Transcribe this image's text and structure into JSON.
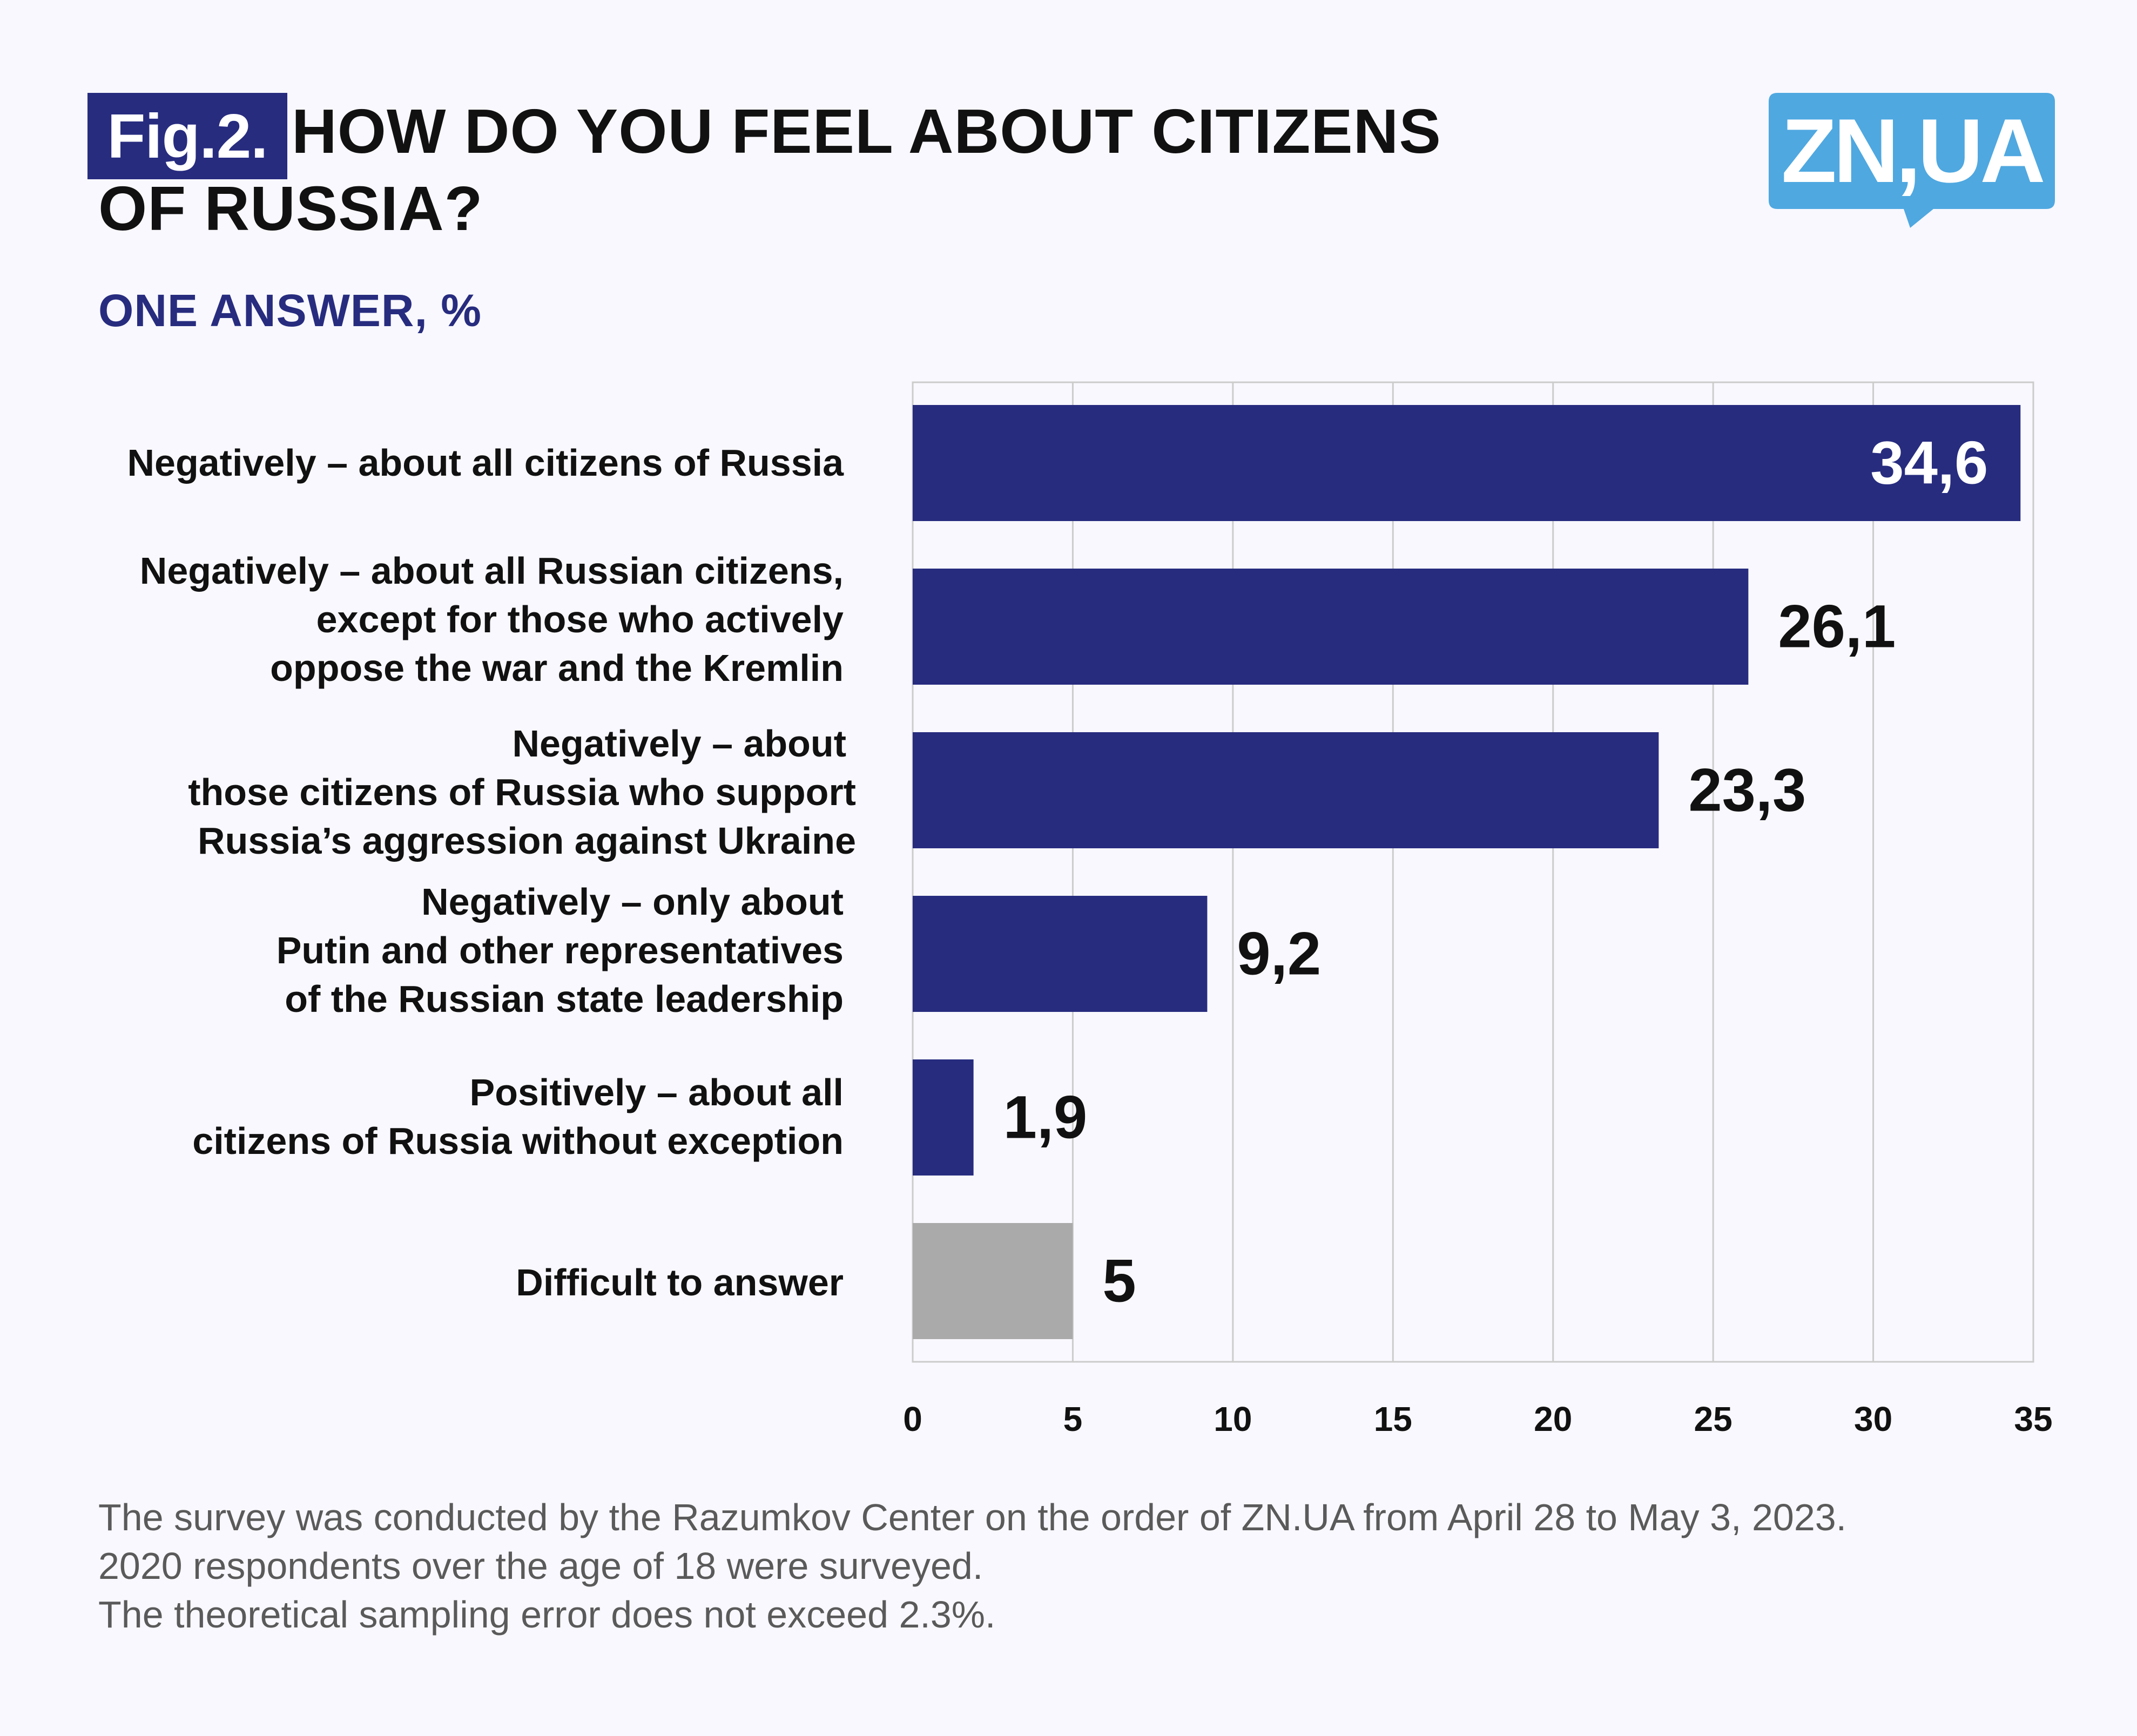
{
  "header": {
    "fig_label": "Fig.2.",
    "title": "HOW DO YOU FEEL ABOUT CITIZENS OF RUSSIA?",
    "subtitle": "ONE ANSWER, %"
  },
  "logo": {
    "text": "ZN,UA",
    "color": "#4fa8e0"
  },
  "colors": {
    "bar": "#272c7f",
    "bar_other": "#aaaaaa",
    "grid": "#cccccc",
    "accent": "#272c7f"
  },
  "chart_data": {
    "type": "bar",
    "orientation": "horizontal",
    "title": "HOW DO YOU FEEL ABOUT CITIZENS OF RUSSIA?",
    "xlabel": "",
    "ylabel": "",
    "xlim": [
      0,
      35
    ],
    "ticks": [
      0,
      5,
      10,
      15,
      20,
      25,
      30,
      35
    ],
    "grid": true,
    "categories": [
      "Negatively – about all citizens of Russia",
      "Negatively – about all Russian citizens, except for those who actively oppose the war and the Kremlin",
      "Negatively – about those citizens of Russia who support Russia’s aggression against Ukraine",
      "Negatively – only about Putin and other representatives of the Russian state leadership",
      "Positively – about all citizens of Russia without exception",
      "Difficult to answer"
    ],
    "values": [
      34.6,
      26.1,
      23.3,
      9.2,
      1.9,
      5
    ],
    "value_labels": [
      "34,6",
      "26,1",
      "23,3",
      "9,2",
      "1,9",
      "5"
    ],
    "label_lines": [
      [
        "Negatively – about all citizens of Russia"
      ],
      [
        "Negatively – about all Russian citizens,",
        "except for those who actively",
        "oppose the war and the Kremlin"
      ],
      [
        "Negatively – about",
        "those citizens of Russia who support",
        "Russia’s aggression against Ukraine"
      ],
      [
        "Negatively – only about",
        "Putin and other representatives",
        "of the Russian state leadership"
      ],
      [
        "Positively – about all",
        "citizens of Russia without exception"
      ],
      [
        "Difficult to answer"
      ]
    ]
  },
  "footnote": {
    "lines": [
      "The survey was conducted by the Razumkov Center on the order of ZN.UA from April 28 to May 3, 2023.",
      "2020 respondents over the age of 18 were surveyed.",
      "The theoretical sampling error does not exceed 2.3%."
    ]
  }
}
